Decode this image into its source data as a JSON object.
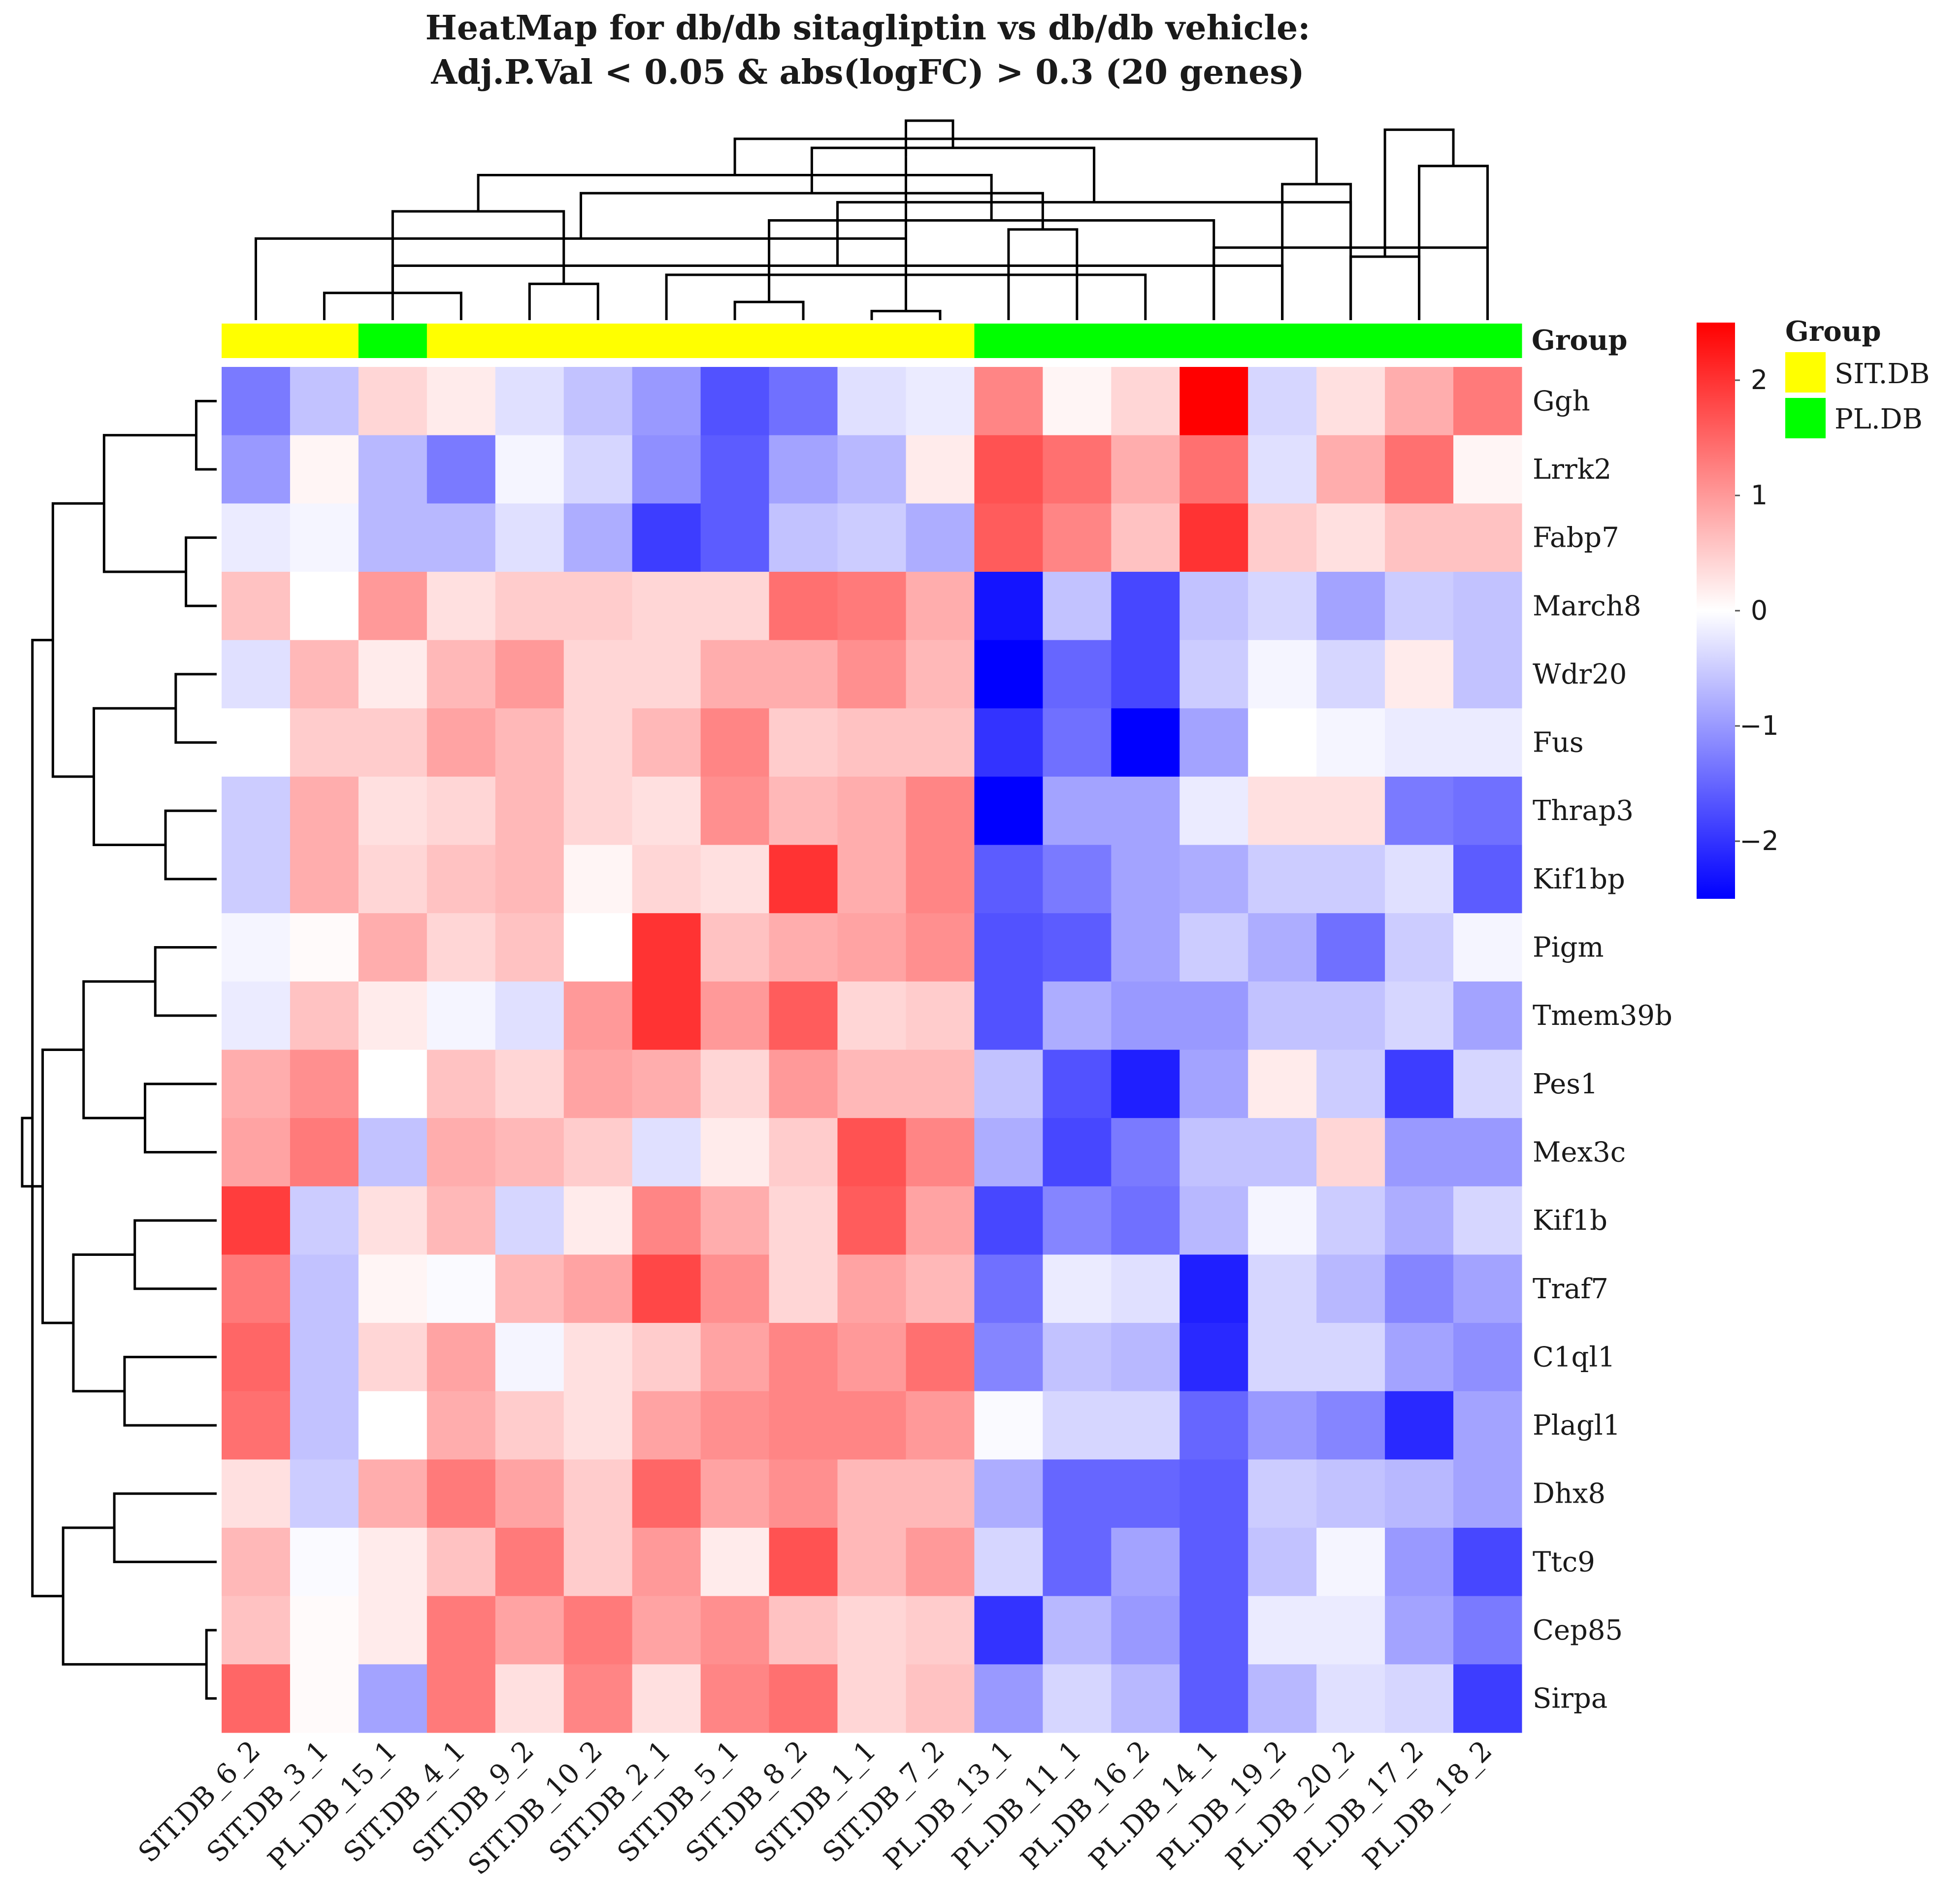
{
  "chart_data": {
    "type": "heatmap",
    "title": [
      "HeatMap for db/db sitagliptin vs db/db vehicle:",
      "Adj.P.Val < 0.05 & abs(logFC) > 0.3 (20 genes)"
    ],
    "columns": [
      "SIT.DB_6_2",
      "SIT.DB_3_1",
      "PL.DB_15_1",
      "SIT.DB_4_1",
      "SIT.DB_9_2",
      "SIT.DB_10_2",
      "SIT.DB_2_1",
      "SIT.DB_5_1",
      "SIT.DB_8_2",
      "SIT.DB_1_1",
      "SIT.DB_7_2",
      "PL.DB_13_1",
      "PL.DB_11_1",
      "PL.DB_16_2",
      "PL.DB_14_1",
      "PL.DB_19_2",
      "PL.DB_20_2",
      "PL.DB_17_2",
      "PL.DB_18_2"
    ],
    "column_groups": [
      "SIT.DB",
      "SIT.DB",
      "PL.DB",
      "SIT.DB",
      "SIT.DB",
      "SIT.DB",
      "SIT.DB",
      "SIT.DB",
      "SIT.DB",
      "SIT.DB",
      "SIT.DB",
      "PL.DB",
      "PL.DB",
      "PL.DB",
      "PL.DB",
      "PL.DB",
      "PL.DB",
      "PL.DB",
      "PL.DB"
    ],
    "rows": [
      "Ggh",
      "Lrrk2",
      "Fabp7",
      "March8",
      "Wdr20",
      "Fus",
      "Thrap3",
      "Kif1bp",
      "Pigm",
      "Tmem39b",
      "Pes1",
      "Mex3c",
      "Kif1b",
      "Traf7",
      "C1ql1",
      "Plagl1",
      "Dhx8",
      "Ttc9",
      "Cep85",
      "Sirpa"
    ],
    "values": [
      [
        -1.3,
        -0.6,
        0.4,
        0.2,
        -0.3,
        -0.6,
        -1.0,
        -1.7,
        -1.4,
        -0.3,
        -0.2,
        1.2,
        0.1,
        0.4,
        2.5,
        -0.4,
        0.3,
        0.8,
        1.3
      ],
      [
        -1.0,
        0.1,
        -0.7,
        -1.3,
        -0.1,
        -0.4,
        -1.1,
        -1.6,
        -0.9,
        -0.7,
        0.2,
        1.7,
        1.4,
        0.8,
        1.4,
        -0.3,
        0.8,
        1.4,
        0.1
      ],
      [
        -0.2,
        -0.1,
        -0.7,
        -0.7,
        -0.3,
        -0.8,
        -1.9,
        -1.6,
        -0.6,
        -0.5,
        -0.8,
        1.6,
        1.2,
        0.6,
        2.0,
        0.5,
        0.3,
        0.6,
        0.6
      ],
      [
        0.6,
        0.0,
        1.0,
        0.3,
        0.5,
        0.5,
        0.4,
        0.4,
        1.4,
        1.3,
        0.8,
        -2.3,
        -0.6,
        -1.8,
        -0.6,
        -0.4,
        -0.9,
        -0.5,
        -0.6
      ],
      [
        -0.3,
        0.7,
        0.2,
        0.7,
        1.0,
        0.4,
        0.4,
        0.8,
        0.8,
        1.1,
        0.7,
        -2.6,
        -1.5,
        -1.8,
        -0.5,
        -0.1,
        -0.4,
        0.2,
        -0.6
      ],
      [
        0.0,
        0.5,
        0.5,
        0.9,
        0.7,
        0.4,
        0.7,
        1.2,
        0.5,
        0.6,
        0.6,
        -2.0,
        -1.4,
        -2.6,
        -0.9,
        0.0,
        -0.1,
        -0.2,
        -0.2
      ],
      [
        -0.5,
        0.8,
        0.3,
        0.4,
        0.7,
        0.4,
        0.3,
        1.1,
        0.7,
        0.8,
        1.2,
        -2.6,
        -0.9,
        -0.9,
        -0.2,
        0.3,
        0.3,
        -1.3,
        -1.4
      ],
      [
        -0.5,
        0.8,
        0.4,
        0.6,
        0.7,
        0.1,
        0.4,
        0.3,
        2.0,
        0.8,
        1.2,
        -1.6,
        -1.3,
        -0.9,
        -0.8,
        -0.5,
        -0.5,
        -0.3,
        -1.6
      ],
      [
        -0.1,
        0.05,
        0.8,
        0.4,
        0.6,
        0.0,
        2.0,
        0.6,
        0.8,
        0.9,
        1.1,
        -1.7,
        -1.6,
        -0.9,
        -0.5,
        -0.8,
        -1.4,
        -0.5,
        -0.1
      ],
      [
        -0.2,
        0.6,
        0.2,
        -0.1,
        -0.3,
        1.0,
        2.0,
        1.0,
        1.6,
        0.4,
        0.5,
        -1.7,
        -0.8,
        -1.0,
        -1.0,
        -0.6,
        -0.6,
        -0.4,
        -0.9
      ],
      [
        0.8,
        1.1,
        0.0,
        0.6,
        0.4,
        0.9,
        0.8,
        0.4,
        1.0,
        0.7,
        0.7,
        -0.6,
        -1.7,
        -2.2,
        -0.9,
        0.2,
        -0.5,
        -1.9,
        -0.4
      ],
      [
        0.9,
        1.3,
        -0.6,
        0.8,
        0.7,
        0.5,
        -0.3,
        0.2,
        0.5,
        1.7,
        1.2,
        -0.8,
        -1.8,
        -1.3,
        -0.6,
        -0.6,
        0.4,
        -1.0,
        -1.0
      ],
      [
        1.9,
        -0.5,
        0.3,
        0.7,
        -0.4,
        0.2,
        1.2,
        0.8,
        0.4,
        1.6,
        0.9,
        -1.8,
        -1.2,
        -1.4,
        -0.7,
        -0.1,
        -0.5,
        -0.8,
        -0.4
      ],
      [
        1.3,
        -0.6,
        0.1,
        -0.05,
        0.7,
        0.9,
        1.8,
        1.1,
        0.4,
        0.9,
        0.7,
        -1.4,
        -0.2,
        -0.3,
        -2.2,
        -0.4,
        -0.7,
        -1.2,
        -0.9
      ],
      [
        1.5,
        -0.6,
        0.4,
        0.9,
        -0.1,
        0.3,
        0.5,
        0.9,
        1.2,
        1.0,
        1.4,
        -1.2,
        -0.6,
        -0.7,
        -2.1,
        -0.4,
        -0.4,
        -0.9,
        -1.1
      ],
      [
        1.4,
        -0.6,
        0.0,
        0.8,
        0.5,
        0.3,
        0.9,
        1.1,
        1.2,
        1.2,
        1.0,
        -0.05,
        -0.4,
        -0.4,
        -1.5,
        -1.0,
        -1.2,
        -2.1,
        -0.9
      ],
      [
        0.3,
        -0.5,
        0.8,
        1.3,
        0.9,
        0.5,
        1.5,
        0.9,
        1.1,
        0.7,
        0.7,
        -0.8,
        -1.5,
        -1.5,
        -1.6,
        -0.5,
        -0.6,
        -0.7,
        -0.9
      ],
      [
        0.7,
        -0.05,
        0.2,
        0.6,
        1.3,
        0.5,
        1.0,
        0.2,
        1.7,
        0.7,
        1.0,
        -0.4,
        -1.5,
        -0.9,
        -1.6,
        -0.6,
        -0.1,
        -1.0,
        -1.8
      ],
      [
        0.6,
        0.05,
        0.2,
        1.3,
        0.9,
        1.3,
        0.9,
        1.1,
        0.6,
        0.4,
        0.5,
        -2.0,
        -0.7,
        -1.0,
        -1.6,
        -0.2,
        -0.2,
        -0.9,
        -1.3
      ],
      [
        1.5,
        0.05,
        -0.9,
        1.3,
        0.3,
        1.2,
        0.3,
        1.2,
        1.4,
        0.4,
        0.6,
        -1.0,
        -0.4,
        -0.7,
        -1.6,
        -0.7,
        -0.3,
        -0.4,
        -1.9
      ]
    ],
    "color_scale": {
      "min": -2.5,
      "mid": 0,
      "max": 2.5,
      "low_color": "#0000ff",
      "mid_color": "#ffffff",
      "high_color": "#ff0000",
      "ticks": [
        2,
        1,
        0,
        -1,
        -2
      ],
      "tick_labels": [
        "2",
        "1",
        "0",
        "−1",
        "−2"
      ]
    },
    "group_annotation_label": "Group",
    "legend": {
      "title": "Group",
      "entries": [
        {
          "name": "SIT.DB",
          "color": "#ffff00"
        },
        {
          "name": "PL.DB",
          "color": "#00ff00"
        }
      ]
    },
    "col_dendrogram": [
      [
        9,
        10
      ],
      [
        7,
        8
      ],
      [
        1,
        3
      ],
      [
        4,
        5
      ],
      [
        6,
        13
      ],
      [
        2,
        15
      ],
      [
        16,
        17
      ],
      [
        14,
        18
      ],
      [
        0,
        19
      ],
      [
        11,
        12
      ],
      [
        14,
        20
      ],
      [
        21,
        22
      ],
      [
        24,
        26
      ],
      [
        27,
        28
      ],
      [
        15,
        16
      ],
      [
        30,
        29
      ],
      [
        18,
        17
      ],
      [
        19,
        23
      ],
      [
        31,
        32
      ],
      [
        33,
        34
      ],
      [
        35,
        25
      ],
      [
        36,
        37
      ]
    ],
    "row_dendrogram": [
      [
        18,
        19
      ],
      [
        0,
        1
      ],
      [
        2,
        3
      ],
      [
        4,
        5
      ],
      [
        6,
        7
      ],
      [
        8,
        9
      ],
      [
        10,
        11
      ],
      [
        12,
        13
      ],
      [
        14,
        15
      ],
      [
        16,
        17
      ],
      [
        21,
        22
      ],
      [
        23,
        24
      ],
      [
        25,
        26
      ],
      [
        27,
        28
      ],
      [
        29,
        20
      ],
      [
        30,
        31
      ],
      [
        32,
        33
      ],
      [
        34,
        35
      ],
      [
        36,
        37
      ]
    ]
  }
}
